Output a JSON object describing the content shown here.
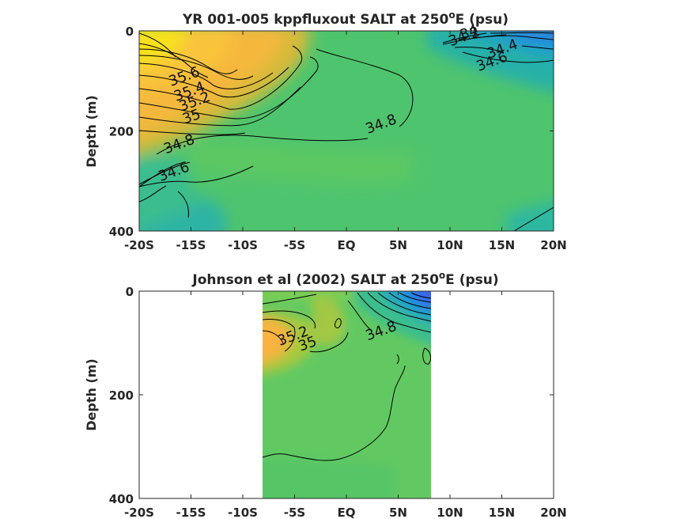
{
  "chart_data": [
    {
      "type": "heatmap",
      "title": "YR 001-005 kppfluxout SALT at 250",
      "title_sup": "o",
      "title_end": "E (psu)",
      "ylabel": "Depth (m)",
      "xlabel": "",
      "x_ticklabels": [
        "-20S",
        "-15S",
        "-10S",
        "-5S",
        "EQ",
        "5N",
        "10N",
        "15N",
        "20N"
      ],
      "x_ticks": [
        -20,
        -15,
        -10,
        -5,
        0,
        5,
        10,
        15,
        20
      ],
      "y_ticklabels": [
        "0",
        "200",
        "400"
      ],
      "y_ticks": [
        0,
        200,
        400
      ],
      "xlim": [
        -20,
        20
      ],
      "ylim": [
        0,
        400
      ],
      "y_reversed": true,
      "data_xlim": [
        -20,
        20
      ],
      "data_ylim": [
        0,
        385
      ],
      "grid": false,
      "colormap": "parula",
      "contour_labels": [
        {
          "text": "35.6",
          "x": -15.5,
          "y": 100
        },
        {
          "text": "35.4",
          "x": -15,
          "y": 130
        },
        {
          "text": "35.2",
          "x": -14.5,
          "y": 150
        },
        {
          "text": "35",
          "x": -14.8,
          "y": 180
        },
        {
          "text": "34.8",
          "x": -16,
          "y": 235
        },
        {
          "text": "34.8",
          "x": 3.5,
          "y": 195
        },
        {
          "text": "34.6",
          "x": -16.5,
          "y": 290
        },
        {
          "text": "34.2",
          "x": 11.5,
          "y": 20
        },
        {
          "text": "34",
          "x": 12,
          "y": 12
        },
        {
          "text": "34.4",
          "x": 15.2,
          "y": 45
        },
        {
          "text": "34.6",
          "x": 14.2,
          "y": 70
        }
      ],
      "fields": [
        {
          "value": 35.8,
          "region": "far south near surface"
        },
        {
          "value": 35.4,
          "region": "south subsurface core"
        },
        {
          "value": 34.7,
          "region": "central interior"
        },
        {
          "value": 34.4,
          "region": "south deep"
        },
        {
          "value": 34.0,
          "region": "north surface"
        }
      ]
    },
    {
      "type": "heatmap",
      "title": "Johnson et al (2002) SALT at 250",
      "title_sup": "o",
      "title_end": "E (psu)",
      "ylabel": "Depth (m)",
      "xlabel": "",
      "x_ticklabels": [
        "-20S",
        "-15S",
        "-10S",
        "-5S",
        "EQ",
        "5N",
        "10N",
        "15N",
        "20N"
      ],
      "x_ticks": [
        -20,
        -15,
        -10,
        -5,
        0,
        5,
        10,
        15,
        20
      ],
      "y_ticklabels": [
        "0",
        "200",
        "400"
      ],
      "y_ticks": [
        0,
        200,
        400
      ],
      "xlim": [
        -20,
        20
      ],
      "ylim": [
        0,
        400
      ],
      "y_reversed": true,
      "data_xlim": [
        -8,
        8.3
      ],
      "data_ylim": [
        0,
        400
      ],
      "grid": false,
      "colormap": "parula",
      "contour_labels": [
        {
          "text": "35.2",
          "x": -5,
          "y": 95
        },
        {
          "text": "35",
          "x": -3.6,
          "y": 110
        },
        {
          "text": "34.8",
          "x": 3.5,
          "y": 85
        }
      ],
      "fields": [
        {
          "value": 35.3,
          "region": "south subsurface core"
        },
        {
          "value": 34.75,
          "region": "interior"
        },
        {
          "value": 33.8,
          "region": "north surface"
        }
      ]
    }
  ]
}
